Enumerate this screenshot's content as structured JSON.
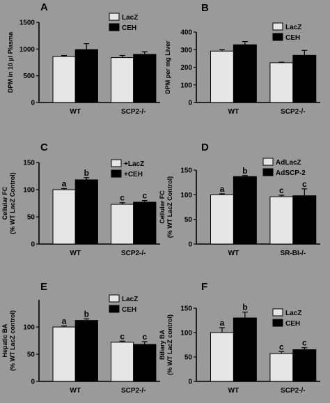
{
  "colors": {
    "background": "#9a9a9a",
    "control": "#e6e6e6",
    "treated": "#000000"
  },
  "chart_data": [
    {
      "type": "bar",
      "panel": "A",
      "categories": [
        "WT",
        "SCP2-/-"
      ],
      "series": [
        {
          "name": "LacZ",
          "values": [
            860,
            840
          ],
          "errors": [
            20,
            40
          ]
        },
        {
          "name": "CEH",
          "values": [
            990,
            900
          ],
          "errors": [
            110,
            50
          ]
        }
      ],
      "ylabel": "DPM in 10 µl Plasma",
      "ylim": [
        0,
        1500
      ],
      "yticks": [
        0,
        500,
        1000,
        1500
      ],
      "legend": "top-right",
      "letters": []
    },
    {
      "type": "bar",
      "panel": "B",
      "categories": [
        "WT",
        "SCP2-/-"
      ],
      "series": [
        {
          "name": "LacZ",
          "values": [
            292,
            226
          ],
          "errors": [
            8,
            3
          ]
        },
        {
          "name": "CEH",
          "values": [
            328,
            268
          ],
          "errors": [
            18,
            28
          ]
        }
      ],
      "ylabel": "DPM per mg Liver",
      "ylim": [
        0,
        400
      ],
      "yticks": [
        0,
        100,
        200,
        300,
        400
      ],
      "legend": "top-right",
      "letters": []
    },
    {
      "type": "bar",
      "panel": "C",
      "categories": [
        "WT",
        "SCP2-/-"
      ],
      "series": [
        {
          "name": "+LacZ",
          "values": [
            100,
            73
          ],
          "errors": [
            2,
            3
          ]
        },
        {
          "name": "+CEH",
          "values": [
            118,
            77
          ],
          "errors": [
            4,
            3
          ]
        }
      ],
      "ylabel": "Cellular FC\n(% WT LacZ Control)",
      "ylim": [
        0,
        150
      ],
      "yticks": [
        0,
        50,
        100,
        150
      ],
      "legend": "top-right",
      "letters": [
        [
          "a",
          "b"
        ],
        [
          "c",
          "c"
        ]
      ]
    },
    {
      "type": "bar",
      "panel": "D",
      "categories": [
        "WT",
        "SR-BI-/-"
      ],
      "series": [
        {
          "name": "AdLacZ",
          "values": [
            100,
            96
          ],
          "errors": [
            2,
            3
          ]
        },
        {
          "name": "AdSCP-2",
          "values": [
            137,
            98
          ],
          "errors": [
            2,
            14
          ]
        }
      ],
      "ylabel": "Cellular FC\n(% WT LacZ Control)",
      "ylim": [
        0,
        150
      ],
      "yticks": [
        0,
        50,
        100,
        150
      ],
      "legend": "top-right",
      "letters": [
        [
          "a",
          "b"
        ],
        [
          "c",
          "c"
        ]
      ]
    },
    {
      "type": "bar",
      "panel": "E",
      "categories": [
        "WT",
        "SCP2-/-"
      ],
      "series": [
        {
          "name": "LacZ",
          "values": [
            100,
            72
          ],
          "errors": [
            2,
            2
          ]
        },
        {
          "name": "CEH",
          "values": [
            112,
            68
          ],
          "errors": [
            3,
            5
          ]
        }
      ],
      "ylabel": "Hepatic BA\n(% WT LacZ control)",
      "ylim": [
        0,
        150
      ],
      "yticks": [
        0,
        50,
        100
      ],
      "legend": "top-right",
      "letters": [
        [
          "a",
          "b"
        ],
        [
          "c",
          "c"
        ]
      ]
    },
    {
      "type": "bar",
      "panel": "F",
      "categories": [
        "WT",
        "SCP2-/-"
      ],
      "series": [
        {
          "name": "LacZ",
          "values": [
            100,
            57
          ],
          "errors": [
            10,
            4
          ]
        },
        {
          "name": "CEH",
          "values": [
            130,
            65
          ],
          "errors": [
            12,
            4
          ]
        }
      ],
      "ylabel": "Biliary BA\n(% WT LacZ control)",
      "ylim": [
        0,
        150
      ],
      "yticks": [
        0,
        50,
        100,
        150
      ],
      "legend": "top-right",
      "letters": [
        [
          "a",
          "b"
        ],
        [
          "c",
          "c"
        ]
      ]
    }
  ]
}
